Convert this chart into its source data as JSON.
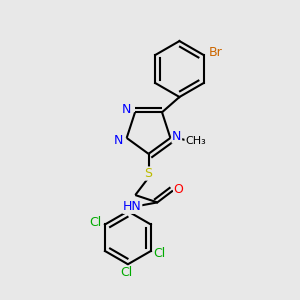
{
  "bg_color": "#e8e8e8",
  "bond_color": "#000000",
  "bond_width": 1.5,
  "font_size": 9,
  "colors": {
    "N": "#0000ff",
    "O": "#ff0000",
    "S": "#bbbb00",
    "Cl": "#00aa00",
    "Br": "#cc6600",
    "C": "#000000",
    "H": "#555555"
  },
  "xlim": [
    0.0,
    1.0
  ],
  "ylim": [
    0.0,
    1.0
  ]
}
